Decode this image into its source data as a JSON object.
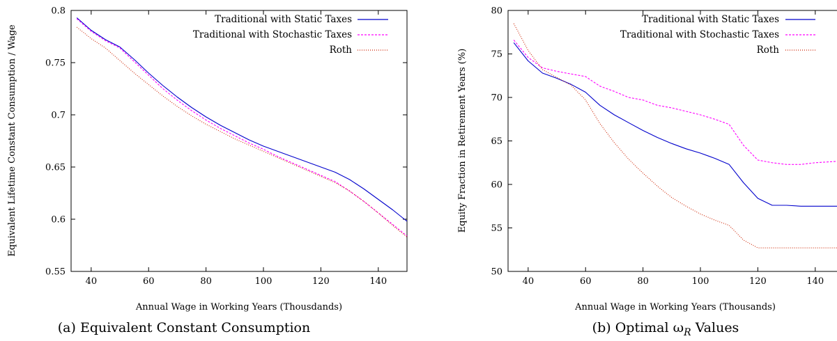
{
  "colors": {
    "static": "#0000cc",
    "stochastic": "#ff00ff",
    "roth": "#cc2200",
    "axis": "#000000"
  },
  "chart_data": [
    {
      "type": "line",
      "caption": "(a) Equivalent Constant Consumption",
      "xlabel": "Annual Wage in Working Years (Thousdands)",
      "ylabel": "Equivalent Lifetime Constant Consumption / Wage",
      "xlim": [
        33,
        150
      ],
      "ylim": [
        0.55,
        0.8
      ],
      "xticks": [
        40,
        60,
        80,
        100,
        120,
        140
      ],
      "yticks": [
        0.55,
        0.6,
        0.65,
        0.7,
        0.75,
        0.8
      ],
      "ytick_labels": [
        "0.55",
        "0.6",
        "0.65",
        "0.7",
        "0.75",
        "0.8"
      ],
      "legend_position": "top-right",
      "series": [
        {
          "name": "Traditional with Static Taxes",
          "style": "solid",
          "x": [
            35,
            40,
            45,
            50,
            55,
            60,
            65,
            70,
            75,
            80,
            85,
            90,
            95,
            100,
            105,
            110,
            115,
            120,
            125,
            130,
            135,
            140,
            145,
            150
          ],
          "y": [
            0.793,
            0.781,
            0.772,
            0.765,
            0.753,
            0.74,
            0.728,
            0.717,
            0.707,
            0.698,
            0.69,
            0.683,
            0.676,
            0.67,
            0.665,
            0.66,
            0.655,
            0.65,
            0.645,
            0.638,
            0.629,
            0.619,
            0.609,
            0.598
          ]
        },
        {
          "name": "Traditional with Stochastic Taxes",
          "style": "dashed",
          "x": [
            35,
            40,
            45,
            50,
            55,
            60,
            65,
            70,
            75,
            80,
            85,
            90,
            95,
            100,
            105,
            110,
            115,
            120,
            125,
            130,
            135,
            140,
            145,
            150
          ],
          "y": [
            0.792,
            0.78,
            0.771,
            0.764,
            0.751,
            0.738,
            0.725,
            0.714,
            0.704,
            0.695,
            0.687,
            0.68,
            0.673,
            0.667,
            0.66,
            0.654,
            0.648,
            0.642,
            0.636,
            0.627,
            0.617,
            0.606,
            0.595,
            0.584
          ]
        },
        {
          "name": "Roth",
          "style": "dotted",
          "x": [
            35,
            40,
            45,
            50,
            55,
            60,
            65,
            70,
            75,
            80,
            85,
            90,
            95,
            100,
            105,
            110,
            115,
            120,
            125,
            130,
            135,
            140,
            145,
            150
          ],
          "y": [
            0.784,
            0.773,
            0.764,
            0.752,
            0.74,
            0.729,
            0.718,
            0.708,
            0.699,
            0.691,
            0.684,
            0.677,
            0.671,
            0.665,
            0.659,
            0.653,
            0.647,
            0.641,
            0.635,
            0.627,
            0.617,
            0.606,
            0.594,
            0.583
          ]
        }
      ]
    },
    {
      "type": "line",
      "caption": "(b) Optimal ωR Values",
      "xlabel": "Annual Wage in Working Years (Thousands)",
      "ylabel": "Equity Fraction in Retirement Years (%)",
      "xlim": [
        33,
        150
      ],
      "ylim": [
        50,
        80
      ],
      "xticks": [
        40,
        60,
        80,
        100,
        120,
        140
      ],
      "yticks": [
        50,
        55,
        60,
        65,
        70,
        75,
        80
      ],
      "ytick_labels": [
        "50",
        "55",
        "60",
        "65",
        "70",
        "75",
        "80"
      ],
      "legend_position": "top-right",
      "series": [
        {
          "name": "Traditional with Static Taxes",
          "style": "solid",
          "x": [
            35,
            40,
            45,
            50,
            55,
            60,
            65,
            70,
            75,
            80,
            85,
            90,
            95,
            100,
            105,
            110,
            115,
            120,
            125,
            130,
            135,
            140,
            145,
            150
          ],
          "y": [
            76.3,
            74.2,
            72.8,
            72.2,
            71.5,
            70.6,
            69.1,
            68.0,
            67.1,
            66.2,
            65.4,
            64.7,
            64.1,
            63.6,
            63.0,
            62.3,
            60.2,
            58.4,
            57.6,
            57.6,
            57.5,
            57.5,
            57.5,
            57.5
          ]
        },
        {
          "name": "Traditional with Stochastic Taxes",
          "style": "dashed",
          "x": [
            35,
            40,
            45,
            50,
            55,
            60,
            65,
            70,
            75,
            80,
            85,
            90,
            95,
            100,
            105,
            110,
            115,
            120,
            125,
            130,
            135,
            140,
            145,
            150
          ],
          "y": [
            76.6,
            74.6,
            73.4,
            73.0,
            72.7,
            72.4,
            71.3,
            70.7,
            70.0,
            69.7,
            69.1,
            68.8,
            68.4,
            68.0,
            67.5,
            66.9,
            64.5,
            62.8,
            62.5,
            62.3,
            62.3,
            62.5,
            62.6,
            62.7
          ]
        },
        {
          "name": "Roth",
          "style": "dotted",
          "x": [
            35,
            40,
            45,
            50,
            55,
            60,
            65,
            70,
            75,
            80,
            85,
            90,
            95,
            100,
            105,
            110,
            115,
            120,
            125,
            130,
            135,
            140,
            145,
            150
          ],
          "y": [
            78.5,
            75.4,
            73.2,
            72.3,
            71.4,
            69.7,
            67.0,
            64.8,
            62.9,
            61.3,
            59.8,
            58.5,
            57.5,
            56.6,
            55.9,
            55.3,
            53.6,
            52.7,
            52.7,
            52.7,
            52.7,
            52.7,
            52.7,
            52.7
          ]
        }
      ]
    }
  ]
}
